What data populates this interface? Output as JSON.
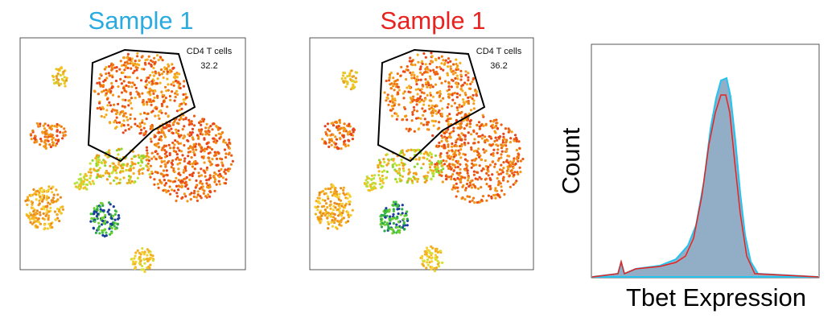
{
  "panels": [
    {
      "title": "Sample 1",
      "gate": {
        "label": "CD4 T cells",
        "percent": 32.2
      }
    },
    {
      "title": "Sample 1",
      "gate": {
        "label": "CD4 T cells",
        "percent": 36.2
      }
    }
  ],
  "histogram": {
    "ylabel": "Count",
    "xlabel": "Tbet Expression"
  }
}
